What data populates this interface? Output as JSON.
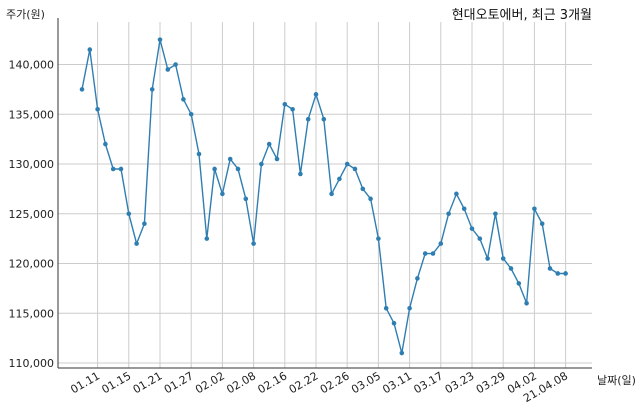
{
  "chart_data": {
    "type": "line",
    "title": "현대오토에버, 최근 3개월",
    "ylabel": "주가(원)",
    "xlabel": "날짜(일)",
    "ylim": [
      110000,
      143500
    ],
    "grid": true,
    "series_color": "#2f7eb2",
    "y_ticks": [
      "110,000",
      "115,000",
      "120,000",
      "125,000",
      "130,000",
      "135,000",
      "140,000"
    ],
    "y_tick_values": [
      110000,
      115000,
      120000,
      125000,
      130000,
      135000,
      140000
    ],
    "x_ticks": [
      {
        "label": "01.11",
        "index": 2
      },
      {
        "label": "01.15",
        "index": 6
      },
      {
        "label": "01.21",
        "index": 10
      },
      {
        "label": "01.27",
        "index": 14
      },
      {
        "label": "02.02",
        "index": 18
      },
      {
        "label": "02.08",
        "index": 22
      },
      {
        "label": "02.16",
        "index": 26
      },
      {
        "label": "02.22",
        "index": 30
      },
      {
        "label": "02.26",
        "index": 34
      },
      {
        "label": "03.05",
        "index": 38
      },
      {
        "label": "03.11",
        "index": 42
      },
      {
        "label": "03.17",
        "index": 46
      },
      {
        "label": "03.23",
        "index": 50
      },
      {
        "label": "03.29",
        "index": 54
      },
      {
        "label": "04.02",
        "index": 58
      },
      {
        "label": "21.04.08",
        "index": 62
      }
    ],
    "values": [
      137500,
      141500,
      135500,
      132000,
      129500,
      129500,
      125000,
      122000,
      124000,
      137500,
      142500,
      139500,
      140000,
      136500,
      135000,
      131000,
      122500,
      129500,
      127000,
      130500,
      129500,
      126500,
      122000,
      130000,
      132000,
      130500,
      136000,
      135500,
      129000,
      134500,
      137000,
      134500,
      127000,
      128500,
      130000,
      129500,
      127500,
      126500,
      122500,
      115500,
      114000,
      111000,
      115500,
      118500,
      121000,
      121000,
      122000,
      125000,
      127000,
      125500,
      123500,
      122500,
      120500,
      125000,
      120500,
      119500,
      118000,
      116000,
      125500,
      124000,
      119500,
      119000,
      119000
    ]
  }
}
